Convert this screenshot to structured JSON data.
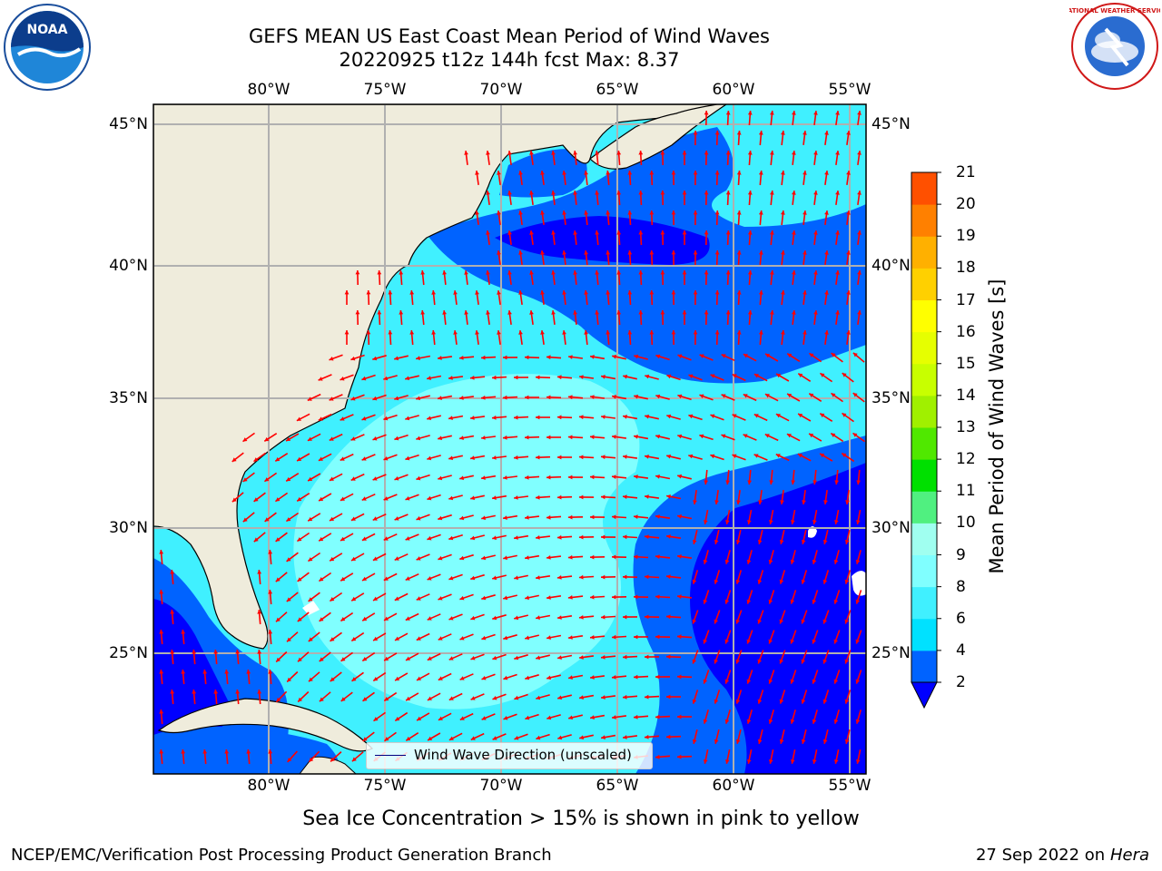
{
  "header": {
    "title_line1": "GEFS MEAN US East Coast Mean Period of Wind Waves",
    "title_line2": "20220925 t12z 144h fcst   Max: 8.37"
  },
  "logos": {
    "noaa_text": "NOAA",
    "nws_text": "NATIONAL WEATHER SERVICE"
  },
  "map": {
    "lon_labels": [
      "80°W",
      "75°W",
      "70°W",
      "65°W",
      "60°W",
      "55°W"
    ],
    "lat_labels": [
      "45°N",
      "40°N",
      "35°N",
      "30°N",
      "25°N"
    ],
    "legend_label": "Wind Wave Direction (unscaled)"
  },
  "colorbar": {
    "title": "Mean Period of Wind Waves [s]",
    "ticks": [
      "2",
      "4",
      "6",
      "8",
      "9",
      "10",
      "11",
      "12",
      "13",
      "14",
      "15",
      "16",
      "17",
      "18",
      "19",
      "20",
      "21"
    ],
    "colors": [
      "#0063ff",
      "#00e1ff",
      "#40f0ff",
      "#80ffff",
      "#a0fff0",
      "#50f080",
      "#00e000",
      "#50e800",
      "#a0f000",
      "#c8ff00",
      "#e6ff00",
      "#ffff00",
      "#ffd000",
      "#ffb000",
      "#ff8000",
      "#ff5000",
      "#ff2000",
      "#ff0000"
    ],
    "extend_color": "#0000ff"
  },
  "footer": {
    "sea_ice_note": "Sea Ice Concentration > 15% is shown in pink to yellow",
    "left": "NCEP/EMC/Verification Post Processing Product Generation Branch",
    "right_date": "27 Sep 2022 on",
    "right_host": "Hera"
  }
}
